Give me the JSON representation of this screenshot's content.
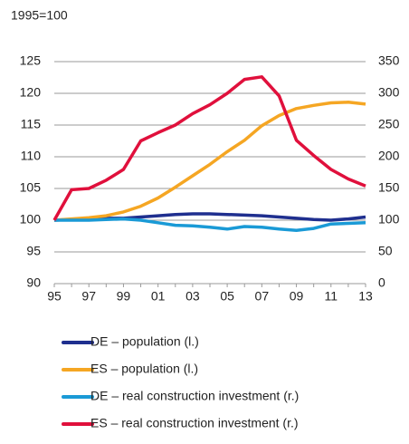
{
  "chart_data": {
    "type": "line",
    "subtitle": "1995=100",
    "categories": [
      "95",
      null,
      "97",
      null,
      "99",
      null,
      "01",
      null,
      "03",
      null,
      "05",
      null,
      "07",
      null,
      "09",
      null,
      "11",
      null,
      "13"
    ],
    "series": [
      {
        "name": "DE – population (l.)",
        "color": "#1f2f8f",
        "axis": "y",
        "values": [
          100,
          100.1,
          100.3,
          100.3,
          100.3,
          100.5,
          100.7,
          100.9,
          101,
          101,
          100.9,
          100.8,
          100.7,
          100.5,
          100.3,
          100.1,
          100,
          100.2,
          100.5
        ]
      },
      {
        "name": "ES – population (l.)",
        "color": "#f5a623",
        "axis": "y",
        "values": [
          100,
          100.2,
          100.4,
          100.7,
          101.3,
          102.2,
          103.5,
          105.2,
          107,
          108.8,
          110.8,
          112.6,
          114.9,
          116.5,
          117.6,
          118.1,
          118.5,
          118.6,
          118.3
        ]
      },
      {
        "name": "DE – real construction investment (r.)",
        "color": "#1a9ad6",
        "axis": "y2",
        "values": [
          100,
          100,
          100,
          101,
          102,
          100,
          96,
          92,
          91,
          89,
          86,
          90,
          89,
          86,
          84,
          87,
          94,
          95,
          96
        ]
      },
      {
        "name": "ES – real construction investment (r.)",
        "color": "#e0103c",
        "axis": "y2",
        "values": [
          100,
          148,
          150,
          163,
          180,
          225,
          238,
          250,
          268,
          282,
          300,
          322,
          326,
          296,
          226,
          202,
          180,
          165,
          154
        ]
      }
    ],
    "ylim": [
      90,
      125
    ],
    "yticks": [
      90,
      95,
      100,
      105,
      110,
      115,
      120,
      125
    ],
    "y2lim": [
      0,
      350
    ],
    "y2ticks": [
      0,
      50,
      100,
      150,
      200,
      250,
      300,
      350
    ],
    "grid": true,
    "legend": "bottom"
  }
}
